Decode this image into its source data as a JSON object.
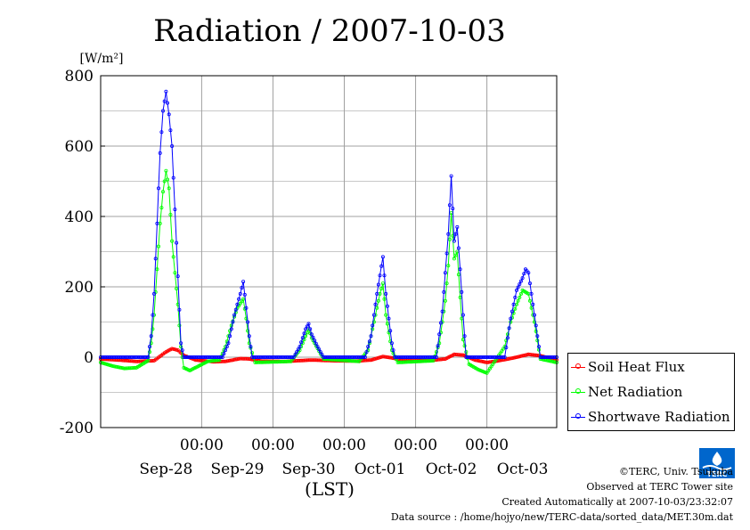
{
  "chart_data": {
    "type": "line",
    "title": "Radiation / 2007-10-03",
    "ylabel": "[W/m²]",
    "xlabel": "(LST)",
    "ylim": [
      -200,
      800
    ],
    "yticks": [
      -200,
      0,
      200,
      400,
      600,
      800
    ],
    "xlim": [
      "2007-09-27 14:00",
      "2007-10-03 23:30"
    ],
    "time_tick_label": "00:00",
    "date_labels": [
      "Sep-28",
      "Sep-29",
      "Sep-30",
      "Oct-01",
      "Oct-02",
      "Oct-03"
    ],
    "grid": true,
    "legend_position": "right-bottom",
    "series": [
      {
        "name": "Soil Heat Flux",
        "color": "#ff0000",
        "points": [
          [
            "2007-09-27 14:00",
            -5
          ],
          [
            "2007-09-27 20:00",
            -8
          ],
          [
            "2007-09-28 02:00",
            -12
          ],
          [
            "2007-09-28 08:00",
            -10
          ],
          [
            "2007-09-28 12:00",
            15
          ],
          [
            "2007-09-28 14:00",
            24
          ],
          [
            "2007-09-28 16:00",
            20
          ],
          [
            "2007-09-28 18:00",
            5
          ],
          [
            "2007-09-28 22:00",
            -8
          ],
          [
            "2007-09-29 04:00",
            -13
          ],
          [
            "2007-09-29 08:00",
            -12
          ],
          [
            "2007-09-29 13:00",
            -4
          ],
          [
            "2007-09-29 16:00",
            -5
          ],
          [
            "2007-09-29 20:00",
            -11
          ],
          [
            "2007-09-30 04:00",
            -12
          ],
          [
            "2007-09-30 13:00",
            -8
          ],
          [
            "2007-09-30 20:00",
            -10
          ],
          [
            "2007-10-01 04:00",
            -11
          ],
          [
            "2007-10-01 09:00",
            -8
          ],
          [
            "2007-10-01 13:00",
            2
          ],
          [
            "2007-10-01 16:00",
            -2
          ],
          [
            "2007-10-01 20:00",
            -8
          ],
          [
            "2007-10-02 04:00",
            -10
          ],
          [
            "2007-10-02 10:00",
            -5
          ],
          [
            "2007-10-02 13:00",
            8
          ],
          [
            "2007-10-02 16:00",
            6
          ],
          [
            "2007-10-02 20:00",
            -8
          ],
          [
            "2007-10-03 00:00",
            -15
          ],
          [
            "2007-10-03 04:00",
            -10
          ],
          [
            "2007-10-03 09:00",
            -2
          ],
          [
            "2007-10-03 14:00",
            8
          ],
          [
            "2007-10-03 18:00",
            4
          ],
          [
            "2007-10-03 23:30",
            -8
          ]
        ]
      },
      {
        "name": "Net Radiation",
        "color": "#00ff00",
        "points": [
          [
            "2007-09-27 14:00",
            -15
          ],
          [
            "2007-09-27 18:00",
            -25
          ],
          [
            "2007-09-27 22:00",
            -32
          ],
          [
            "2007-09-28 02:00",
            -30
          ],
          [
            "2007-09-28 06:00",
            -10
          ],
          [
            "2007-09-28 07:00",
            40
          ],
          [
            "2007-09-28 08:00",
            120
          ],
          [
            "2007-09-28 09:00",
            250
          ],
          [
            "2007-09-28 10:00",
            380
          ],
          [
            "2007-09-28 11:00",
            470
          ],
          [
            "2007-09-28 12:00",
            530
          ],
          [
            "2007-09-28 13:00",
            480
          ],
          [
            "2007-09-28 14:00",
            330
          ],
          [
            "2007-09-28 15:00",
            240
          ],
          [
            "2007-09-28 16:00",
            150
          ],
          [
            "2007-09-28 17:00",
            30
          ],
          [
            "2007-09-28 18:00",
            -30
          ],
          [
            "2007-09-28 20:00",
            -38
          ],
          [
            "2007-09-29 02:00",
            -12
          ],
          [
            "2007-09-29 06:00",
            -8
          ],
          [
            "2007-09-29 08:00",
            30
          ],
          [
            "2007-09-29 10:00",
            90
          ],
          [
            "2007-09-29 12:00",
            140
          ],
          [
            "2007-09-29 14:00",
            165
          ],
          [
            "2007-09-29 15:00",
            110
          ],
          [
            "2007-09-29 16:00",
            40
          ],
          [
            "2007-09-29 18:00",
            -15
          ],
          [
            "2007-09-30 06:00",
            -12
          ],
          [
            "2007-09-30 09:00",
            20
          ],
          [
            "2007-09-30 11:00",
            60
          ],
          [
            "2007-09-30 12:00",
            80
          ],
          [
            "2007-09-30 13:00",
            55
          ],
          [
            "2007-09-30 15:00",
            25
          ],
          [
            "2007-09-30 17:00",
            -5
          ],
          [
            "2007-10-01 05:00",
            -12
          ],
          [
            "2007-10-01 08:00",
            20
          ],
          [
            "2007-10-01 10:00",
            100
          ],
          [
            "2007-10-01 12:00",
            180
          ],
          [
            "2007-10-01 13:00",
            210
          ],
          [
            "2007-10-01 14:00",
            120
          ],
          [
            "2007-10-01 16:00",
            20
          ],
          [
            "2007-10-01 18:00",
            -15
          ],
          [
            "2007-10-02 06:00",
            -10
          ],
          [
            "2007-10-02 08:00",
            40
          ],
          [
            "2007-10-02 10:00",
            160
          ],
          [
            "2007-10-02 11:00",
            260
          ],
          [
            "2007-10-02 12:00",
            410
          ],
          [
            "2007-10-02 13:00",
            280
          ],
          [
            "2007-10-02 14:00",
            300
          ],
          [
            "2007-10-02 15:00",
            170
          ],
          [
            "2007-10-02 16:00",
            50
          ],
          [
            "2007-10-02 18:00",
            -20
          ],
          [
            "2007-10-02 21:00",
            -35
          ],
          [
            "2007-10-03 00:00",
            -45
          ],
          [
            "2007-10-03 02:00",
            -20
          ],
          [
            "2007-10-03 06:00",
            30
          ],
          [
            "2007-10-03 08:00",
            100
          ],
          [
            "2007-10-03 10:00",
            150
          ],
          [
            "2007-10-03 12:00",
            190
          ],
          [
            "2007-10-03 14:00",
            180
          ],
          [
            "2007-10-03 16:00",
            100
          ],
          [
            "2007-10-03 18:00",
            -5
          ],
          [
            "2007-10-03 23:30",
            -15
          ]
        ]
      },
      {
        "name": "Shortwave Radiation",
        "color": "#0000ff",
        "points": [
          [
            "2007-09-27 14:00",
            0
          ],
          [
            "2007-09-28 06:00",
            0
          ],
          [
            "2007-09-28 07:00",
            60
          ],
          [
            "2007-09-28 08:00",
            180
          ],
          [
            "2007-09-28 09:00",
            380
          ],
          [
            "2007-09-28 10:00",
            580
          ],
          [
            "2007-09-28 11:00",
            700
          ],
          [
            "2007-09-28 12:00",
            755
          ],
          [
            "2007-09-28 13:00",
            690
          ],
          [
            "2007-09-28 14:00",
            600
          ],
          [
            "2007-09-28 15:00",
            420
          ],
          [
            "2007-09-28 16:00",
            230
          ],
          [
            "2007-09-28 17:00",
            40
          ],
          [
            "2007-09-28 18:00",
            0
          ],
          [
            "2007-09-29 07:00",
            0
          ],
          [
            "2007-09-29 09:00",
            40
          ],
          [
            "2007-09-29 11:00",
            120
          ],
          [
            "2007-09-29 13:00",
            180
          ],
          [
            "2007-09-29 14:00",
            215
          ],
          [
            "2007-09-29 15:00",
            140
          ],
          [
            "2007-09-29 16:00",
            60
          ],
          [
            "2007-09-29 17:00",
            0
          ],
          [
            "2007-09-30 07:00",
            0
          ],
          [
            "2007-09-30 09:00",
            30
          ],
          [
            "2007-09-30 11:00",
            80
          ],
          [
            "2007-09-30 12:00",
            95
          ],
          [
            "2007-09-30 13:00",
            65
          ],
          [
            "2007-09-30 15:00",
            30
          ],
          [
            "2007-09-30 17:00",
            0
          ],
          [
            "2007-10-01 07:00",
            0
          ],
          [
            "2007-10-01 09:00",
            60
          ],
          [
            "2007-10-01 11:00",
            180
          ],
          [
            "2007-10-01 13:00",
            285
          ],
          [
            "2007-10-01 14:00",
            180
          ],
          [
            "2007-10-01 16:00",
            40
          ],
          [
            "2007-10-01 17:00",
            0
          ],
          [
            "2007-10-02 07:00",
            0
          ],
          [
            "2007-10-02 09:00",
            130
          ],
          [
            "2007-10-02 11:00",
            350
          ],
          [
            "2007-10-02 12:00",
            515
          ],
          [
            "2007-10-02 13:00",
            330
          ],
          [
            "2007-10-02 14:00",
            370
          ],
          [
            "2007-10-02 15:00",
            250
          ],
          [
            "2007-10-02 16:00",
            120
          ],
          [
            "2007-10-02 17:00",
            0
          ],
          [
            "2007-10-03 06:00",
            0
          ],
          [
            "2007-10-03 08:00",
            110
          ],
          [
            "2007-10-03 10:00",
            190
          ],
          [
            "2007-10-03 12:00",
            225
          ],
          [
            "2007-10-03 13:00",
            250
          ],
          [
            "2007-10-03 14:00",
            240
          ],
          [
            "2007-10-03 16:00",
            120
          ],
          [
            "2007-10-03 18:00",
            0
          ],
          [
            "2007-10-03 23:30",
            0
          ]
        ]
      }
    ]
  },
  "footer": {
    "copyright": "©TERC, Univ. Tsukuba",
    "observed": "Observed at TERC Tower site",
    "created": "Created Automatically at 2007-10-03/23:32:07",
    "source": "Data source : /home/hojyo/new/TERC-data/sorted_data/MET.30m.dat"
  },
  "logo": {
    "text": "TERC",
    "color": "#0066cc"
  }
}
